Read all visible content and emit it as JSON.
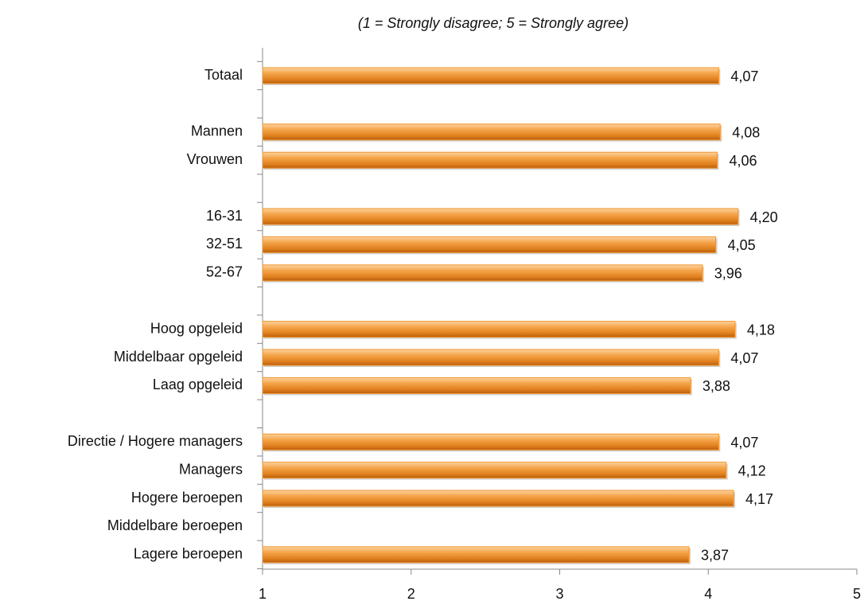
{
  "chart_data": {
    "type": "barh",
    "subtitle": "(1 = Strongly disagree; 5 = Strongly agree)",
    "categories": [
      "Totaal",
      null,
      "Mannen",
      "Vrouwen",
      null,
      "16-31",
      "32-51",
      "52-67",
      null,
      "Hoog opgeleid",
      "Middelbaar opgeleid",
      "Laag opgeleid",
      null,
      "Directie / Hogere managers",
      "Managers",
      "Hogere beroepen",
      "Middelbare beroepen",
      "Lagere beroepen"
    ],
    "values": [
      4.07,
      null,
      4.08,
      4.06,
      null,
      4.2,
      4.05,
      3.96,
      null,
      4.18,
      4.07,
      3.88,
      null,
      4.07,
      4.12,
      4.17,
      null,
      3.87
    ],
    "value_labels": [
      "4,07",
      null,
      "4,08",
      "4,06",
      null,
      "4,20",
      "4,05",
      "3,96",
      null,
      "4,18",
      "4,07",
      "3,88",
      null,
      "4,07",
      "4,12",
      "4,17",
      null,
      "3,87"
    ],
    "color": "#f0952e",
    "xlim": [
      1,
      5
    ],
    "xticks": [
      1,
      2,
      3,
      4,
      5
    ]
  }
}
